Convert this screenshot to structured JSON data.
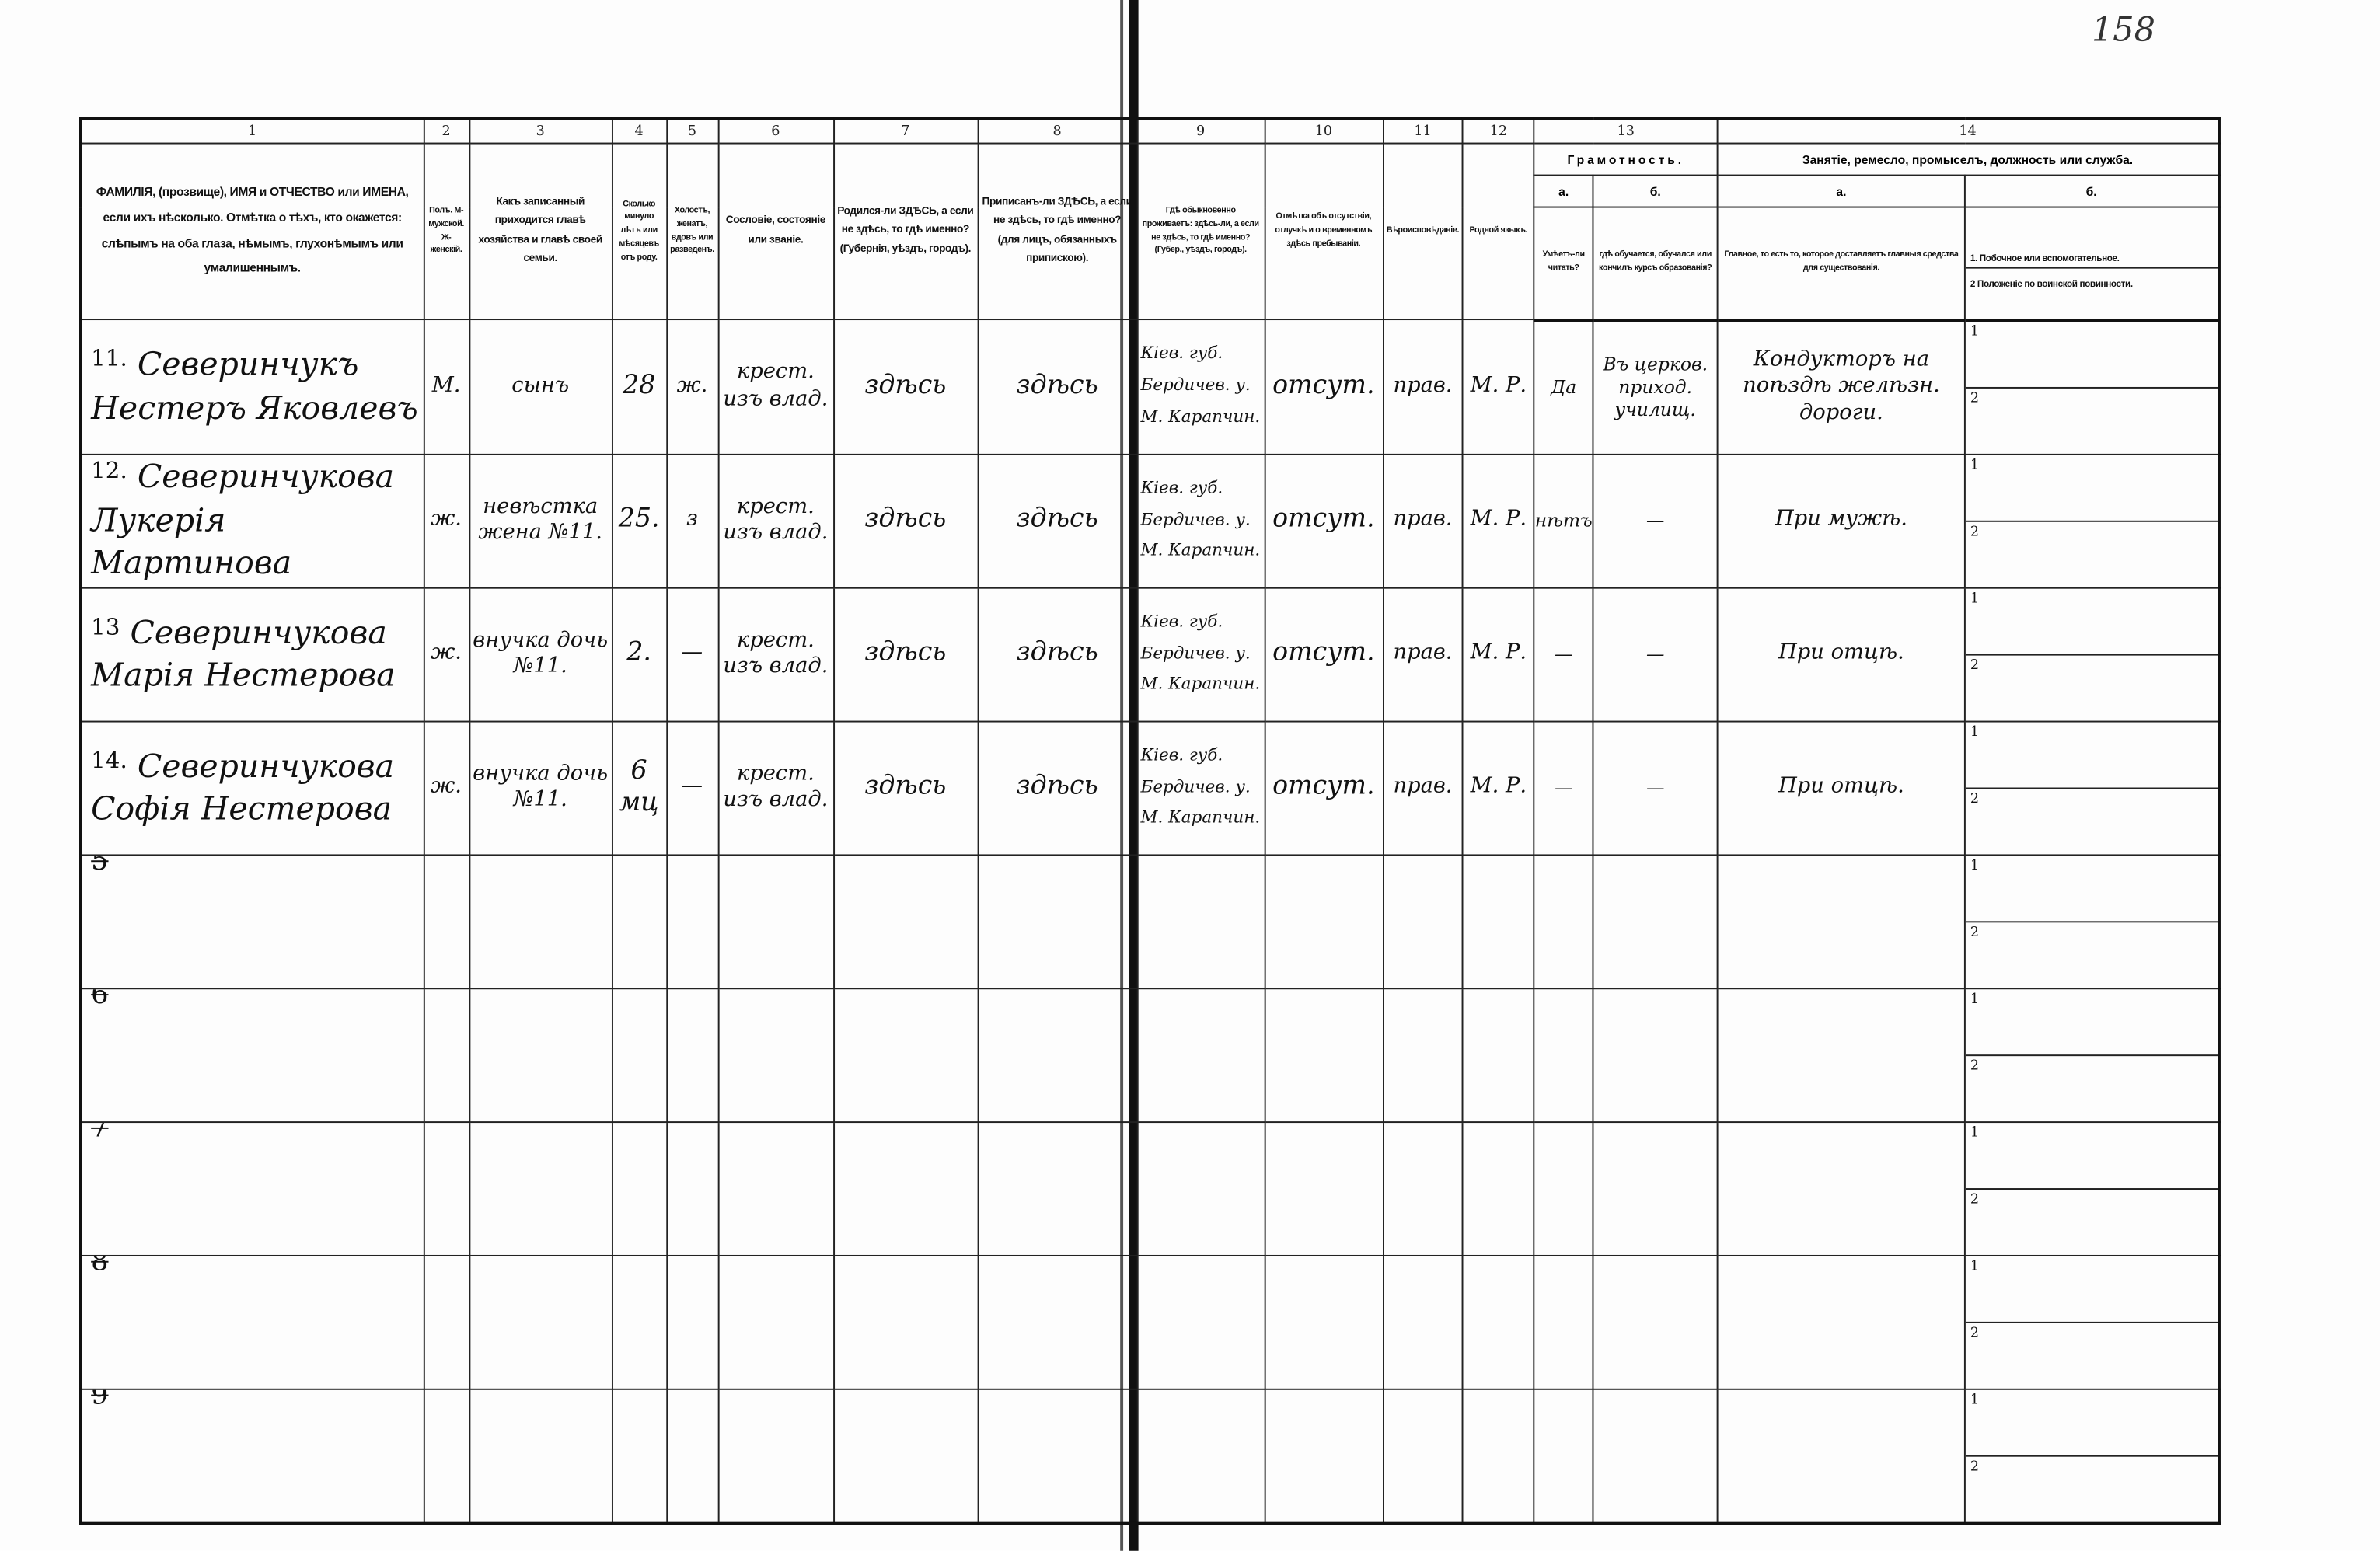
{
  "page_number": "158",
  "column_numbers": [
    "1",
    "2",
    "3",
    "4",
    "5",
    "6",
    "7",
    "8",
    "9",
    "10",
    "11",
    "12",
    "13",
    "14"
  ],
  "headers": {
    "c1": "ФАМИЛІЯ, (прозвище), ИМЯ и ОТЧЕСТВО или ИМЕНА, если ихъ нѣсколько. Отмѣтка о тѣхъ, кто окажется: слѣпымъ на оба глаза, нѣмымъ, глухонѣмымъ или умалишеннымъ.",
    "c2": "Полъ. М-мужской. Ж-женскій.",
    "c3": "Какъ записанный приходится главѣ хозяйства и главѣ своей семьи.",
    "c4": "Сколько минуло лѣтъ или мѣсяцевъ отъ роду.",
    "c5": "Холостъ, женатъ, вдовъ или разведенъ.",
    "c6": "Сословіе, состояніе или званіе.",
    "c7": "Родился-ли ЗДѢСЬ, а если не здѣсь, то гдѣ именно? (Губернія, уѣздъ, городъ).",
    "c8": "Приписанъ-ли ЗДѢСЬ, а если не здѣсь, то гдѣ именно? (для лицъ, обязанныхъ припискою).",
    "c9": "Гдѣ обыкновенно проживаетъ: здѣсь-ли, а если не здѣсь, то гдѣ именно? (Губер., уѣздъ, городъ).",
    "c10": "Отмѣтка объ отсутствіи, отлучкѣ и о временномъ здѣсь пребываніи.",
    "c11": "Вѣроисповѣданіе.",
    "c12": "Родной языкъ.",
    "c13": "Грамотность.",
    "c13a_letter": "а.",
    "c13b_letter": "б.",
    "c13a": "Умѣетъ-ли читать?",
    "c13b": "гдѣ обучается, обучался или кончилъ курсъ образованія?",
    "c14": "Занятіе, ремесло, промыселъ, должность или служба.",
    "c14a_letter": "а.",
    "c14b_letter": "б.",
    "c14a": "Главное, то есть то, которое доставляетъ главныя средства для существованія.",
    "c14b_1": "1. Побочное или вспомогательное.",
    "c14b_2": "2 Положеніе по воинской повинности."
  },
  "sub_labels": {
    "one": "1",
    "two": "2"
  },
  "rows": [
    {
      "num": "11.",
      "name": "Северинчукъ Нестеръ Яковлевъ",
      "sex": "М.",
      "relation": "сынъ",
      "age": "28",
      "marital": "ж.",
      "estate": "крест. изъ влад.",
      "born": "здѣсь",
      "registered": "здѣсь",
      "residence": "Кіев. губ. Бердичев. у. М. Карапчин.",
      "absence": "отсут.",
      "religion": "прав.",
      "language": "М. Р.",
      "literate": "Да",
      "education": "Въ церков. приход. училищ.",
      "occupation": "Кондукторъ на поѣздѣ желѣзн. дороги."
    },
    {
      "num": "12.",
      "name": "Северинчукова Лукерія Мартинова",
      "sex": "ж.",
      "relation": "невѣстка жена №11.",
      "age": "25.",
      "marital": "з",
      "estate": "крест. изъ влад.",
      "born": "здѣсь",
      "registered": "здѣсь",
      "residence": "Кіев. губ. Бердичев. у. М. Карапчин.",
      "absence": "отсут.",
      "religion": "прав.",
      "language": "М. Р.",
      "literate": "нѣтъ",
      "education": "—",
      "occupation": "При мужѣ."
    },
    {
      "num": "13",
      "name": "Северинчукова Марія Нестерова",
      "sex": "ж.",
      "relation": "внучка дочь №11.",
      "age": "2.",
      "marital": "—",
      "estate": "крест. изъ влад.",
      "born": "здѣсь",
      "registered": "здѣсь",
      "residence": "Кіев. губ. Бердичев. у. М. Карапчин.",
      "absence": "отсут.",
      "religion": "прав.",
      "language": "М. Р.",
      "literate": "—",
      "education": "—",
      "occupation": "При отцѣ."
    },
    {
      "num": "14.",
      "name": "Северинчукова Софія Нестерова",
      "sex": "ж.",
      "relation": "внучка дочь №11.",
      "age": "6 мц",
      "marital": "—",
      "estate": "крест. изъ влад.",
      "born": "здѣсь",
      "registered": "здѣсь",
      "residence": "Кіев. губ. Бердичев. у. М. Карапчин.",
      "absence": "отсут.",
      "religion": "прав.",
      "language": "М. Р.",
      "literate": "—",
      "education": "—",
      "occupation": "При отцѣ."
    }
  ],
  "empty_rows": [
    "5",
    "6",
    "7",
    "8",
    "9"
  ]
}
